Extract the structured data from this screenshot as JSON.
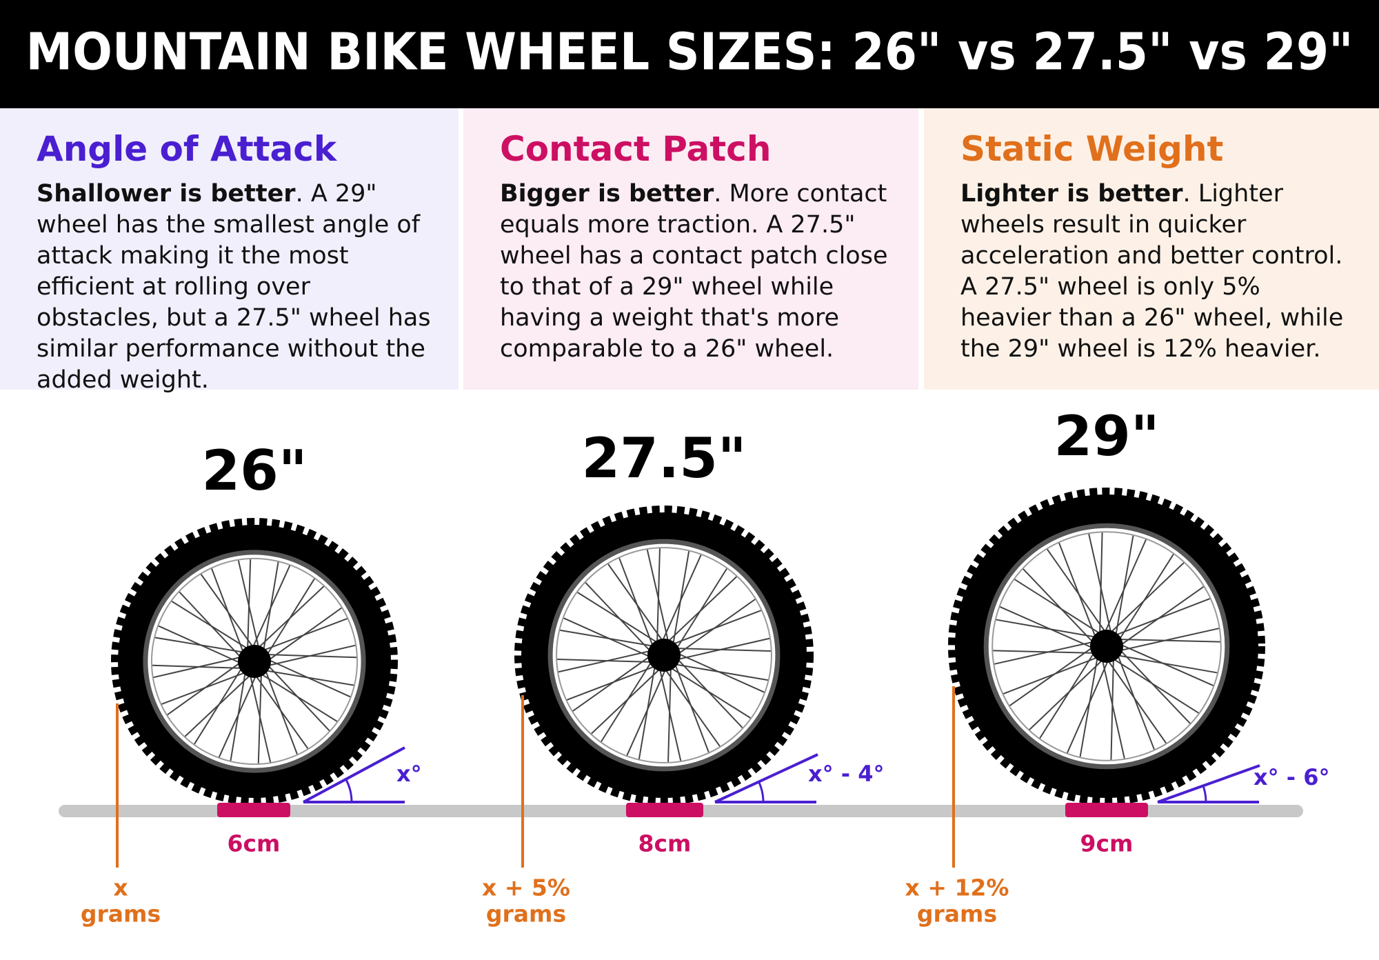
{
  "header": {
    "title": "MOUNTAIN BIKE WHEEL SIZES: 26\" vs 27.5\" vs 29\""
  },
  "panels": [
    {
      "title": "Angle of Attack",
      "lead": "Shallower is better",
      "body": ". A 29\" wheel has the smallest angle of attack making it the most efficient at rolling over obstacles, but a 27.5\" wheel has similar performance without the added weight."
    },
    {
      "title": "Contact Patch",
      "lead": "Bigger is better",
      "body": ". More contact equals more traction. A 27.5\" wheel has a contact patch close to that of a 29\" wheel while having a weight that's more comparable to a 26\" wheel."
    },
    {
      "title": "Static Weight",
      "lead": "Lighter is better",
      "body": ".  Lighter wheels result in quicker acceleration and better control.  A 27.5\" wheel is only 5% heavier than a 26\" wheel, while the 29\" wheel is 12% heavier."
    }
  ],
  "wheels": [
    {
      "size": "26\"",
      "patch": "6cm",
      "angle": "x°",
      "weight": [
        "x",
        "grams"
      ]
    },
    {
      "size": "27.5\"",
      "patch": "8cm",
      "angle": "x° - 4°",
      "weight": [
        "x + 5%",
        "grams"
      ]
    },
    {
      "size": "29\"",
      "patch": "9cm",
      "angle": "x° - 6°",
      "weight": [
        "x + 12%",
        "grams"
      ]
    }
  ]
}
